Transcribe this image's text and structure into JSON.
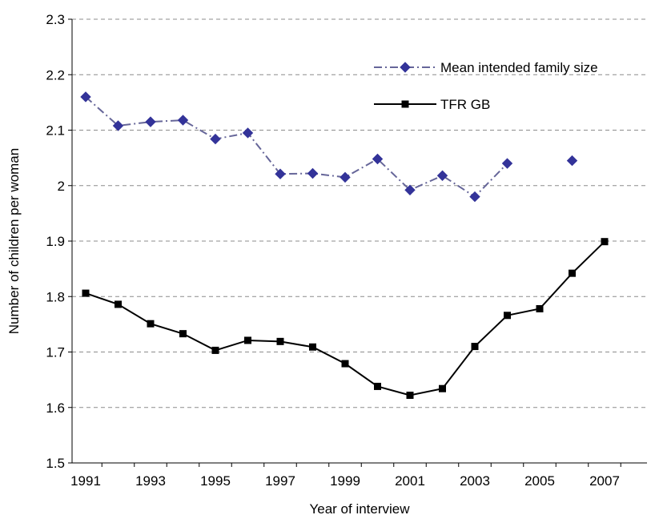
{
  "chart_data": {
    "type": "line",
    "xlabel": "Year of interview",
    "ylabel": "Number of children per woman",
    "ylim": [
      1.5,
      2.3
    ],
    "yticks": [
      1.5,
      1.6,
      1.7,
      1.8,
      1.9,
      2,
      2.1,
      2.2,
      2.3
    ],
    "xlim": [
      1991,
      2008
    ],
    "xticks": [
      1991,
      1993,
      1995,
      1997,
      1999,
      2001,
      2003,
      2005,
      2007
    ],
    "grid": "horizontal dashed",
    "legend_position": "top-right",
    "series": [
      {
        "name": "Mean intended family size",
        "color": "#333399",
        "line_color": "#666699",
        "line_style": "dash-dot",
        "marker": "diamond",
        "points": [
          {
            "x": 1991,
            "y": 2.16
          },
          {
            "x": 1992,
            "y": 2.108
          },
          {
            "x": 1993,
            "y": 2.115
          },
          {
            "x": 1994,
            "y": 2.118
          },
          {
            "x": 1995,
            "y": 2.084
          },
          {
            "x": 1996,
            "y": 2.095
          },
          {
            "x": 1997,
            "y": 2.021
          },
          {
            "x": 1998,
            "y": 2.022
          },
          {
            "x": 1999,
            "y": 2.015
          },
          {
            "x": 2000,
            "y": 2.048
          },
          {
            "x": 2001,
            "y": 1.992
          },
          {
            "x": 2002,
            "y": 2.018
          },
          {
            "x": 2003,
            "y": 1.98
          },
          {
            "x": 2004,
            "y": 2.04
          },
          {
            "x": 2006,
            "y": 2.045
          }
        ]
      },
      {
        "name": "TFR GB",
        "color": "#000000",
        "line_color": "#000000",
        "line_style": "solid",
        "marker": "square",
        "points": [
          {
            "x": 1991,
            "y": 1.806
          },
          {
            "x": 1992,
            "y": 1.786
          },
          {
            "x": 1993,
            "y": 1.751
          },
          {
            "x": 1994,
            "y": 1.733
          },
          {
            "x": 1995,
            "y": 1.703
          },
          {
            "x": 1996,
            "y": 1.721
          },
          {
            "x": 1997,
            "y": 1.719
          },
          {
            "x": 1998,
            "y": 1.709
          },
          {
            "x": 1999,
            "y": 1.679
          },
          {
            "x": 2000,
            "y": 1.638
          },
          {
            "x": 2001,
            "y": 1.622
          },
          {
            "x": 2002,
            "y": 1.634
          },
          {
            "x": 2003,
            "y": 1.71
          },
          {
            "x": 2004,
            "y": 1.766
          },
          {
            "x": 2005,
            "y": 1.778
          },
          {
            "x": 2006,
            "y": 1.842
          },
          {
            "x": 2007,
            "y": 1.899
          }
        ]
      }
    ]
  }
}
